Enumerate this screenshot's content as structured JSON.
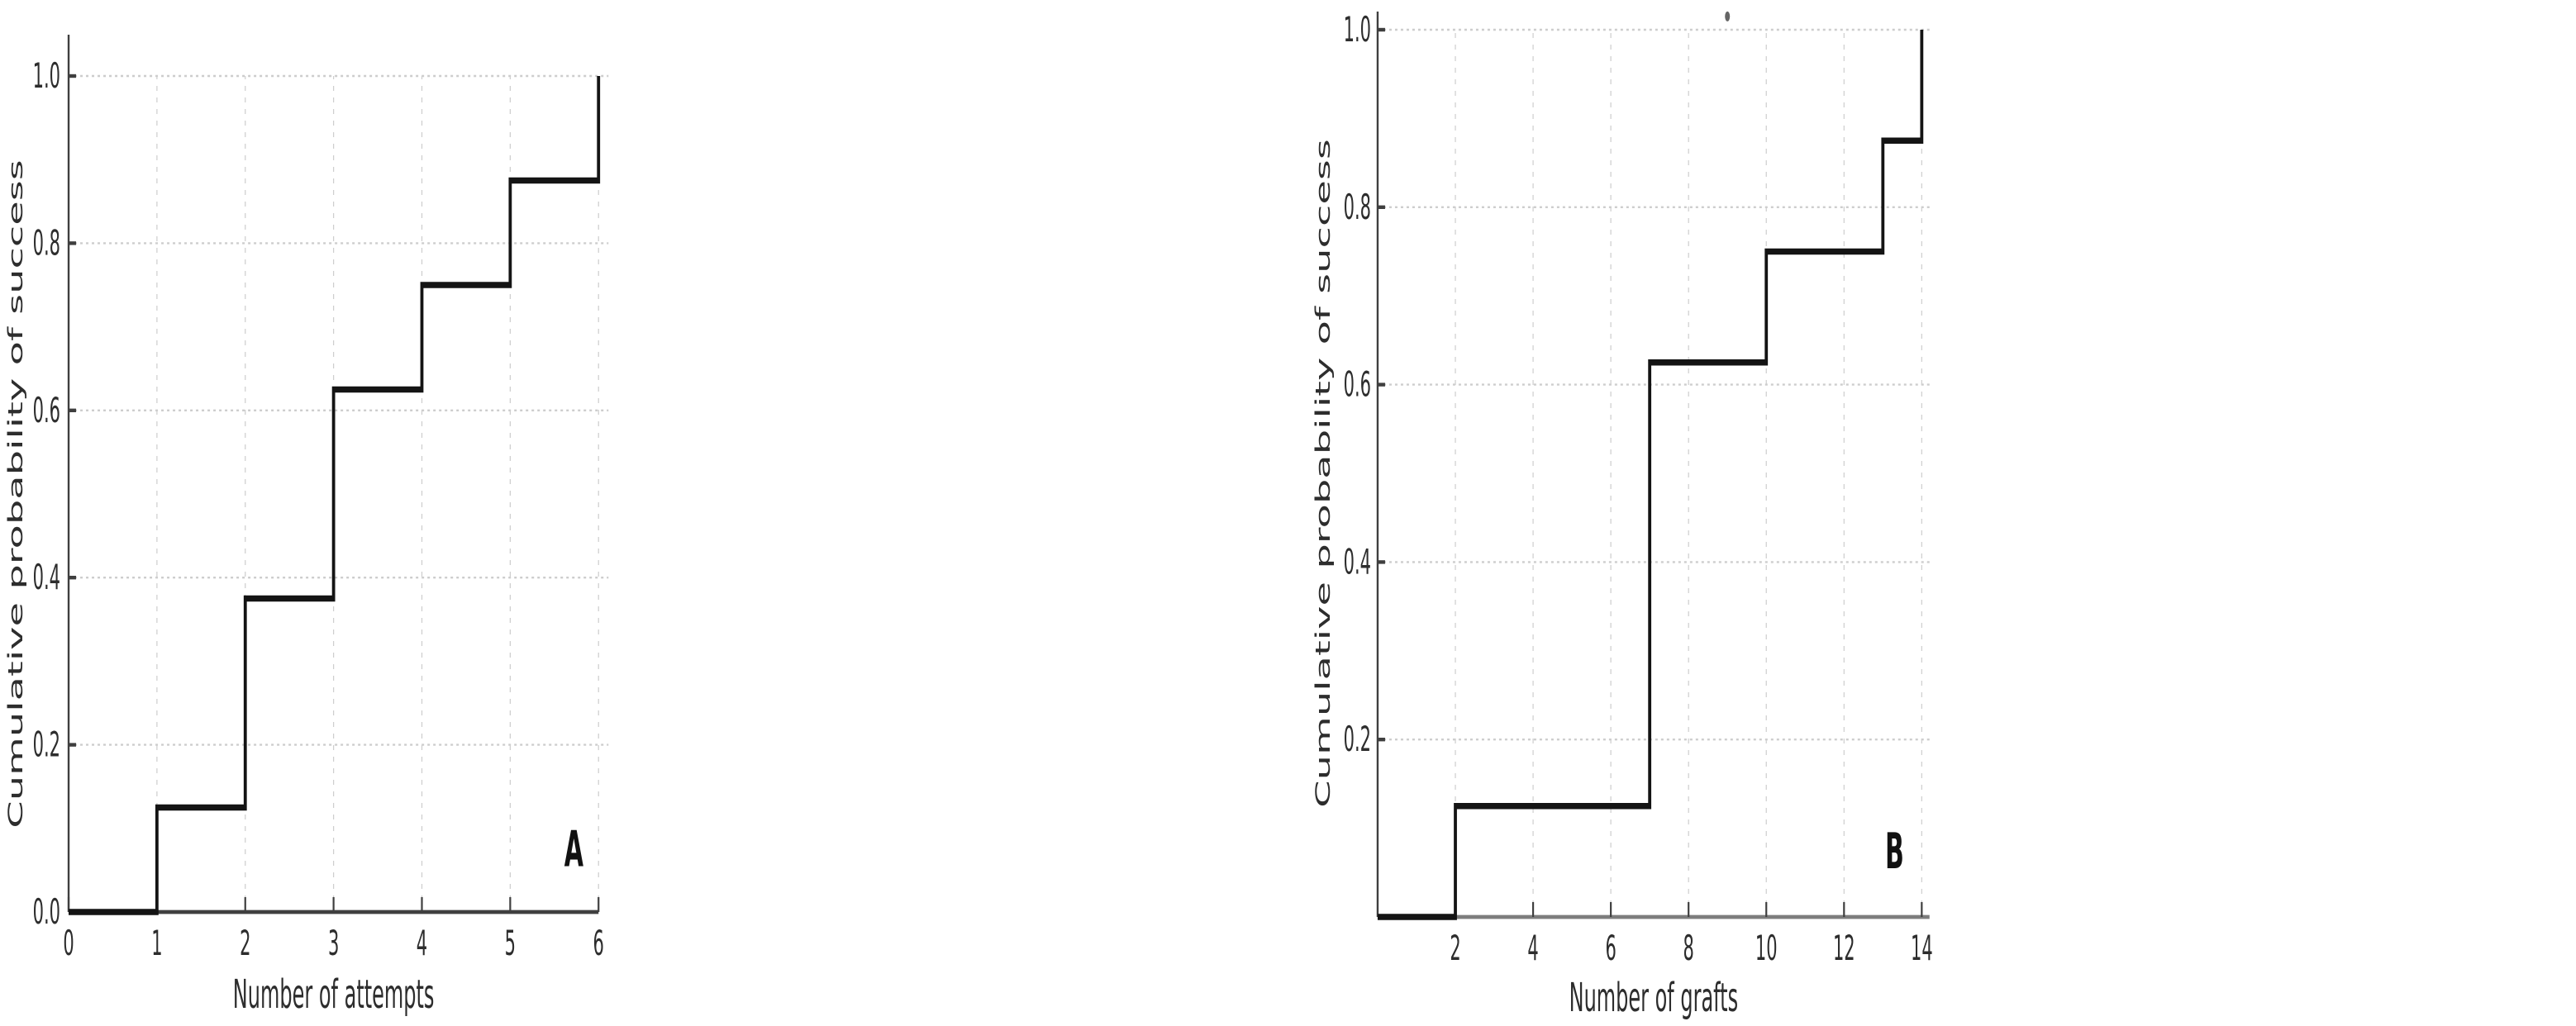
{
  "figure": {
    "background": "#ffffff",
    "text_color": "#2d2d2d",
    "grid_color": "#cdcdcd",
    "curve_color": "#141414",
    "spine_color": "#3f3f3f"
  },
  "chart_data": [
    {
      "type": "step",
      "panel_label": "A",
      "xlabel": "Number of attempts",
      "ylabel": "Cumulative probability of success",
      "xlim": [
        0,
        6
      ],
      "ylim": [
        0,
        1.0
      ],
      "x_ticks": [
        0,
        1,
        2,
        3,
        4,
        5,
        6
      ],
      "x_tick_labels": [
        "0",
        "1",
        "2",
        "3",
        "4",
        "5",
        "6"
      ],
      "y_ticks": [
        0,
        0.2,
        0.4,
        0.6,
        0.8,
        1.0
      ],
      "y_tick_labels": [
        "0.0",
        "0.2",
        "0.4",
        "0.6",
        "0.8",
        "1.0"
      ],
      "grid": true,
      "legend": false,
      "line_start": [
        0,
        0
      ],
      "step_points": [
        [
          1,
          0.125
        ],
        [
          2,
          0.375
        ],
        [
          3,
          0.625
        ],
        [
          4,
          0.75
        ],
        [
          5,
          0.875
        ],
        [
          6,
          1.0
        ]
      ],
      "panel_label_pos": [
        5.72,
        0.055
      ]
    },
    {
      "type": "step",
      "panel_label": "B",
      "xlabel": "Number of grafts",
      "ylabel": "Cumulative probability of success",
      "xlim": [
        0,
        14.2
      ],
      "ylim": [
        0,
        1.0
      ],
      "x_ticks": [
        2,
        4,
        6,
        8,
        10,
        12,
        14
      ],
      "x_tick_labels": [
        "2",
        "4",
        "6",
        "8",
        "10",
        "12",
        "14"
      ],
      "y_ticks": [
        0.2,
        0.4,
        0.6,
        0.8,
        1.0
      ],
      "y_tick_labels": [
        "0.2",
        "0.4",
        "0.6",
        "0.8",
        "1.0"
      ],
      "grid": true,
      "legend": false,
      "line_start": [
        0,
        0
      ],
      "step_points": [
        [
          2,
          0.125
        ],
        [
          7,
          0.625
        ],
        [
          10,
          0.75
        ],
        [
          13,
          0.875
        ],
        [
          14,
          1.0
        ]
      ],
      "panel_label_pos": [
        13.3,
        0.055
      ],
      "stray_mark": [
        9.0,
        1.015
      ],
      "bottom_spine_color": "#7d7d7d"
    }
  ]
}
